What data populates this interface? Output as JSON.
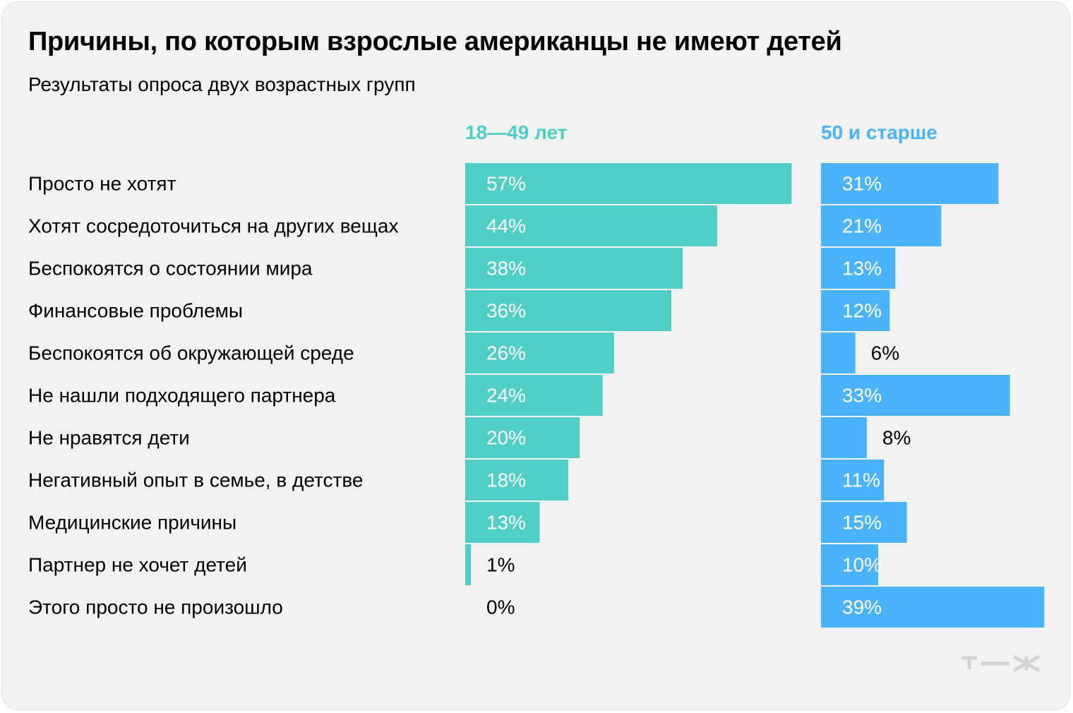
{
  "title": "Причины, по которым взрослые американцы не имеют детей",
  "subtitle": "Результаты опроса двух возрастных групп",
  "colors": {
    "background": "#f2f2f2",
    "series_young": "#4fcfc6",
    "series_old": "#4ab3fc",
    "logo": "#d4d4d4"
  },
  "chart_data": {
    "type": "bar",
    "orientation": "horizontal",
    "title": "Причины, по которым взрослые американцы не имеют детей",
    "subtitle": "Результаты опроса двух возрастных групп",
    "categories": [
      "Просто не хотят",
      "Хотят сосредоточиться на других вещах",
      "Беспокоятся о состоянии мира",
      "Финансовые проблемы",
      "Беспокоятся об окружающей среде",
      "Не нашли подходящего партнера",
      "Не нравятся дети",
      "Негативный опыт в семье, в детстве",
      "Медицинские причины",
      "Партнер не хочет детей",
      "Этого просто не произошло"
    ],
    "series": [
      {
        "name": "18—49 лет",
        "values": [
          57,
          44,
          38,
          36,
          26,
          24,
          20,
          18,
          13,
          1,
          0
        ],
        "labels": [
          "57%",
          "44%",
          "38%",
          "36%",
          "26%",
          "24%",
          "20%",
          "18%",
          "13%",
          "1%",
          "0%"
        ],
        "color": "#4fcfc6"
      },
      {
        "name": "50 и старше",
        "values": [
          31,
          21,
          13,
          12,
          6,
          33,
          8,
          11,
          15,
          10,
          39
        ],
        "labels": [
          "31%",
          "21%",
          "13%",
          "12%",
          "6%",
          "33%",
          "8%",
          "11%",
          "15%",
          "10%",
          "39%"
        ],
        "color": "#4ab3fc"
      }
    ],
    "unit": "%",
    "grid": false,
    "legend": "top, above each panel"
  },
  "logo": {
    "icon": "tzh-logo-icon",
    "text": "т—ж"
  }
}
